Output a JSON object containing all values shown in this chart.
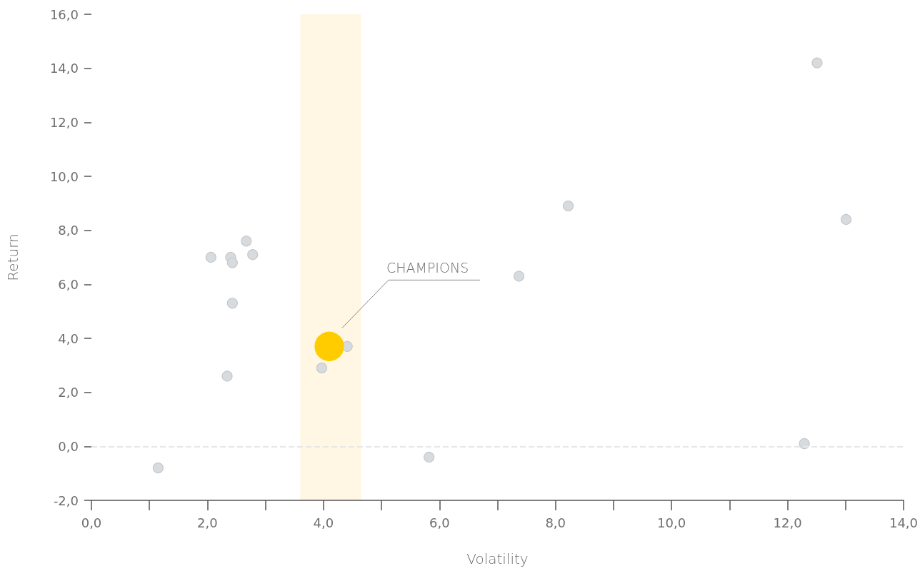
{
  "chart_data": {
    "type": "scatter",
    "xlabel": "Volatility",
    "ylabel": "Return",
    "series": [
      {
        "color": "#d8dbde",
        "x": [
          1.15,
          2.06,
          2.4,
          2.43,
          2.67,
          2.78,
          2.43,
          2.34,
          3.97,
          4.41,
          5.82,
          7.37,
          8.22,
          12.51,
          13.01,
          12.29
        ],
        "values": [
          -0.8,
          7.0,
          7.0,
          6.8,
          7.6,
          7.1,
          5.3,
          2.6,
          2.9,
          3.7,
          -0.4,
          6.3,
          8.9,
          14.2,
          8.4,
          0.1
        ]
      },
      {
        "type": "bubble",
        "color": "#ffcc00",
        "x": [
          4.1
        ],
        "values": [
          3.7
        ],
        "sizes": [
          1
        ]
      }
    ],
    "xlim": [
      0,
      14
    ],
    "xticks": [
      {
        "value": 0,
        "label": "0,0"
      },
      {
        "value": 1,
        "label": null
      },
      {
        "value": 2,
        "label": "2,0"
      },
      {
        "value": 3,
        "label": null
      },
      {
        "value": 4,
        "label": "4,0"
      },
      {
        "value": 5,
        "label": null
      },
      {
        "value": 6,
        "label": "6,0"
      },
      {
        "value": 7,
        "label": null
      },
      {
        "value": 8,
        "label": "8,0"
      },
      {
        "value": 9,
        "label": null
      },
      {
        "value": 10,
        "label": "10,0"
      },
      {
        "value": 11,
        "label": null
      },
      {
        "value": 12,
        "label": "12,0"
      },
      {
        "value": 13,
        "label": null
      },
      {
        "value": 14,
        "label": "14,0"
      }
    ],
    "ylim": [
      -2,
      16
    ],
    "yticks": [
      {
        "value": -2,
        "label": "-2,0"
      },
      {
        "value": 0,
        "label": "0,0"
      },
      {
        "value": 2,
        "label": "2,0"
      },
      {
        "value": 4,
        "label": "4,0"
      },
      {
        "value": 6,
        "label": "6,0"
      },
      {
        "value": 8,
        "label": "8,0"
      },
      {
        "value": 10,
        "label": "10,0"
      },
      {
        "value": 12,
        "label": "12,0"
      },
      {
        "value": 14,
        "label": "14,0"
      },
      {
        "value": 16,
        "label": "16,0"
      }
    ],
    "bands": [
      {
        "axis": "x",
        "from": 3.6,
        "to": 4.65,
        "color": "#fff7e3"
      }
    ],
    "ref_lines": [
      {
        "axis": "y",
        "value": 0,
        "line_style": "dashed",
        "color": "#e6e6e6"
      }
    ],
    "annotations": [
      "CHAMPIONS"
    ],
    "grid": false,
    "marker": "circle"
  }
}
